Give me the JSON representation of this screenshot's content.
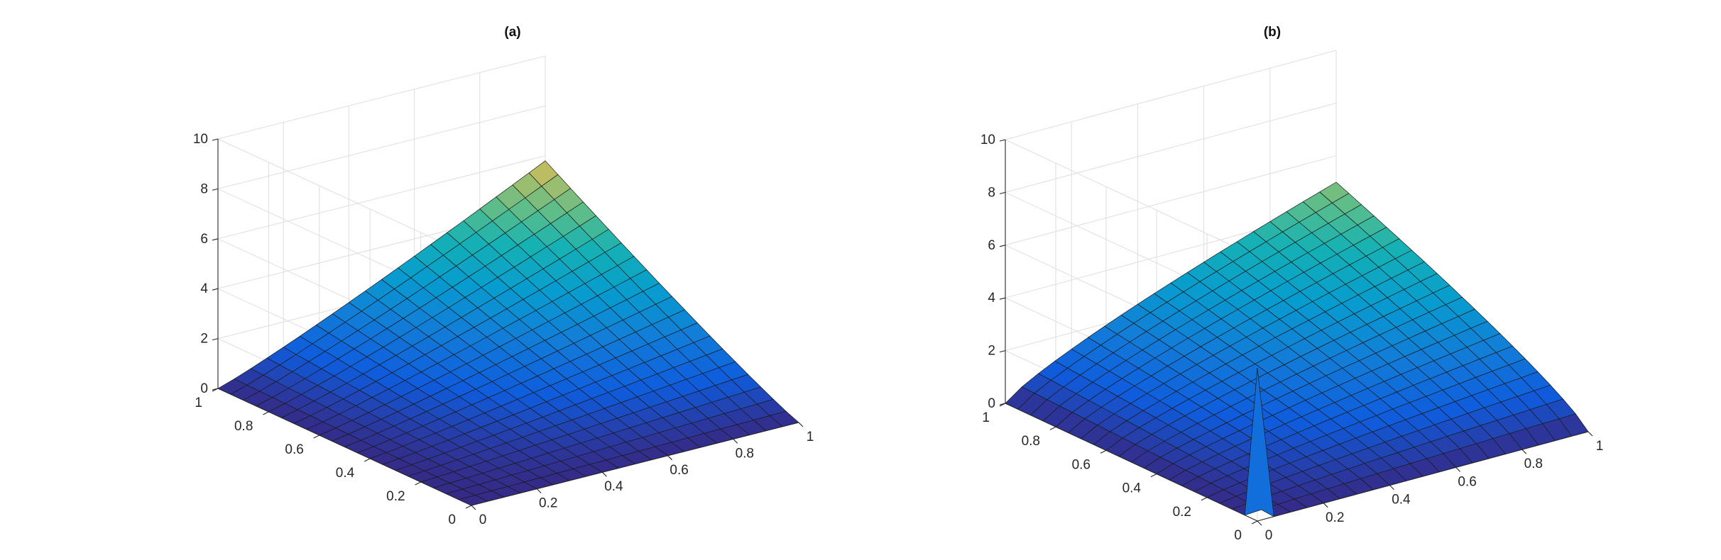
{
  "chart_data": [
    {
      "type": "surface",
      "title": "(a)",
      "x_ticks": [
        "0",
        "0.2",
        "0.4",
        "0.6",
        "0.8",
        "1"
      ],
      "y_ticks": [
        "0",
        "0.2",
        "0.4",
        "0.6",
        "0.8",
        "1"
      ],
      "z_ticks": [
        "0",
        "2",
        "4",
        "6",
        "8",
        "10"
      ],
      "xlim": [
        0,
        1
      ],
      "ylim": [
        0,
        1
      ],
      "zlim": [
        0,
        10
      ],
      "grid": "on",
      "colormap": "parula",
      "grid_resolution": 20,
      "z_min": 0,
      "z_max": 5.8,
      "surface_samples": {
        "note": "z(x,y) on selected grid points",
        "points": [
          {
            "x": 0,
            "y": 0,
            "z": 0
          },
          {
            "x": 1,
            "y": 0,
            "z": 0
          },
          {
            "x": 0,
            "y": 1,
            "z": 0
          },
          {
            "x": 0.5,
            "y": 0.5,
            "z": 1.5
          },
          {
            "x": 1,
            "y": 1,
            "z": 5.8
          }
        ]
      }
    },
    {
      "type": "surface",
      "title": "(b)",
      "x_ticks": [
        "0",
        "0.2",
        "0.4",
        "0.6",
        "0.8",
        "1"
      ],
      "y_ticks": [
        "0",
        "0.2",
        "0.4",
        "0.6",
        "0.8",
        "1"
      ],
      "z_ticks": [
        "0",
        "2",
        "4",
        "6",
        "8",
        "10"
      ],
      "xlim": [
        0,
        1
      ],
      "ylim": [
        0,
        1
      ],
      "zlim": [
        0,
        10
      ],
      "grid": "on",
      "colormap": "parula",
      "grid_resolution": 20,
      "z_min": 0,
      "z_max": 5.8,
      "surface_samples": {
        "note": "z(x,y) on selected grid points; spike near origin",
        "points": [
          {
            "x": 0,
            "y": 0,
            "z": 5.8
          },
          {
            "x": 1,
            "y": 0,
            "z": 0
          },
          {
            "x": 0,
            "y": 1,
            "z": 0
          },
          {
            "x": 0.5,
            "y": 0.5,
            "z": 0.5
          },
          {
            "x": 1,
            "y": 1,
            "z": 5.0
          }
        ]
      }
    }
  ]
}
